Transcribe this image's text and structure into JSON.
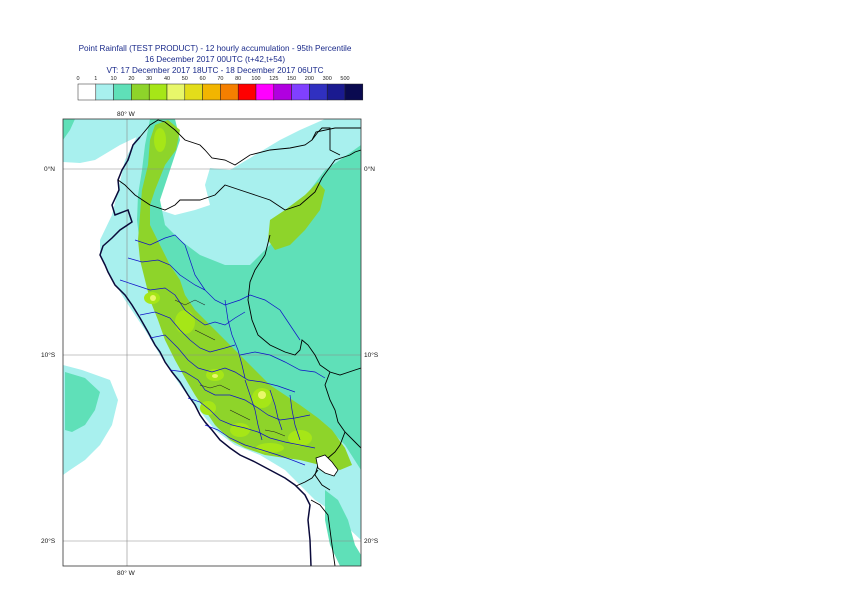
{
  "title": {
    "line1": "Point Rainfall (TEST PRODUCT) - 12 hourly accumulation - 95th Percentile",
    "line2": "16 December 2017 00UTC (t+42,t+54)",
    "line3": "VT: 17 December 2017 18UTC - 18 December 2017 06UTC"
  },
  "legend": {
    "thresholds": [
      "0",
      "1",
      "10",
      "20",
      "30",
      "40",
      "50",
      "60",
      "70",
      "80",
      "100",
      "125",
      "150",
      "200",
      "300",
      "500"
    ],
    "colors": [
      "#ffffff",
      "#a8f0ee",
      "#5fe0b8",
      "#8ed42a",
      "#a6e617",
      "#e8f76a",
      "#e3dd1a",
      "#f2b500",
      "#f57f00",
      "#ff0000",
      "#ff00ff",
      "#b000e0",
      "#8040ff",
      "#3030c0",
      "#1a1a90",
      "#0a0a50"
    ]
  },
  "axes": {
    "lon_label": "80° W",
    "lat_labels": [
      "0°N",
      "10°S",
      "20°S"
    ]
  }
}
